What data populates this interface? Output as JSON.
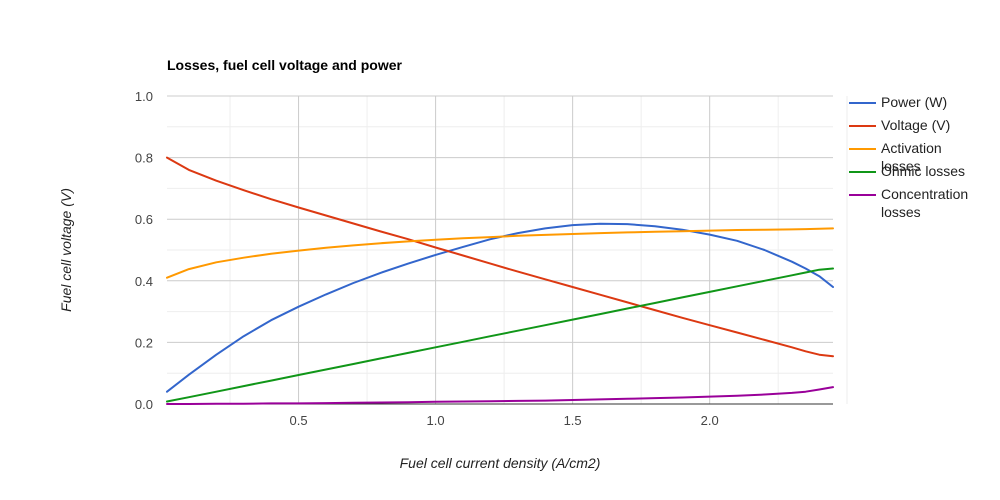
{
  "chart_data": {
    "type": "line",
    "title": "Losses, fuel cell voltage and power",
    "xlabel": "Fuel cell current density (A/cm2)",
    "ylabel": "Fuel cell voltage (V)",
    "xlim": [
      0.02,
      2.45
    ],
    "ylim": [
      0,
      1.0
    ],
    "x_ticks": [
      "0.5",
      "1.0",
      "1.5",
      "2.0"
    ],
    "x_tick_values": [
      0.5,
      1.0,
      1.5,
      2.0
    ],
    "y_ticks": [
      "0.0",
      "0.2",
      "0.4",
      "0.6",
      "0.8",
      "1.0"
    ],
    "y_tick_values": [
      0,
      0.2,
      0.4,
      0.6,
      0.8,
      1.0
    ],
    "grid": true,
    "legend_position": "right",
    "x": [
      0.02,
      0.1,
      0.2,
      0.3,
      0.4,
      0.5,
      0.6,
      0.7,
      0.8,
      0.9,
      1.0,
      1.1,
      1.2,
      1.3,
      1.4,
      1.5,
      1.6,
      1.7,
      1.8,
      1.9,
      2.0,
      2.1,
      2.2,
      2.3,
      2.35,
      2.4,
      2.45
    ],
    "series": [
      {
        "name": "Power (W)",
        "color": "#3366cc",
        "values": [
          0.04,
          0.095,
          0.16,
          0.22,
          0.272,
          0.316,
          0.356,
          0.393,
          0.426,
          0.456,
          0.484,
          0.51,
          0.535,
          0.555,
          0.57,
          0.581,
          0.585,
          0.584,
          0.577,
          0.566,
          0.55,
          0.53,
          0.5,
          0.462,
          0.44,
          0.415,
          0.38
        ]
      },
      {
        "name": "Voltage (V)",
        "color": "#dc3912",
        "values": [
          0.8,
          0.76,
          0.725,
          0.694,
          0.665,
          0.638,
          0.612,
          0.586,
          0.56,
          0.535,
          0.508,
          0.482,
          0.456,
          0.43,
          0.405,
          0.38,
          0.355,
          0.33,
          0.305,
          0.28,
          0.256,
          0.232,
          0.208,
          0.184,
          0.171,
          0.16,
          0.155
        ]
      },
      {
        "name": "Activation losses",
        "color": "#ff9900",
        "values": [
          0.41,
          0.438,
          0.46,
          0.475,
          0.488,
          0.498,
          0.507,
          0.515,
          0.522,
          0.528,
          0.533,
          0.538,
          0.542,
          0.546,
          0.549,
          0.552,
          0.555,
          0.557,
          0.559,
          0.561,
          0.563,
          0.565,
          0.566,
          0.567,
          0.568,
          0.569,
          0.57
        ]
      },
      {
        "name": "Ohmic losses",
        "color": "#109618",
        "values": [
          0.008,
          0.022,
          0.04,
          0.058,
          0.076,
          0.094,
          0.112,
          0.13,
          0.148,
          0.166,
          0.184,
          0.202,
          0.22,
          0.238,
          0.256,
          0.274,
          0.292,
          0.31,
          0.328,
          0.346,
          0.364,
          0.382,
          0.4,
          0.418,
          0.427,
          0.436,
          0.44
        ]
      },
      {
        "name": "Concentration losses",
        "color": "#990099",
        "values": [
          0.0,
          0.0,
          0.001,
          0.001,
          0.002,
          0.002,
          0.003,
          0.004,
          0.005,
          0.006,
          0.007,
          0.008,
          0.009,
          0.01,
          0.011,
          0.013,
          0.015,
          0.017,
          0.019,
          0.021,
          0.024,
          0.027,
          0.031,
          0.036,
          0.04,
          0.047,
          0.055
        ]
      }
    ]
  }
}
